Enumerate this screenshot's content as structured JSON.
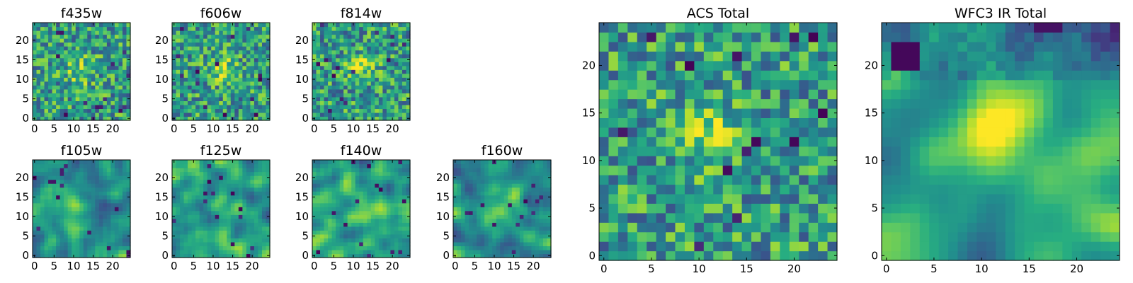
{
  "chart_data": [
    {
      "type": "heatmap",
      "title": "f435w",
      "colormap": "viridis",
      "grid_size": 25,
      "centroid": [
        12,
        12
      ],
      "smoothing": "none",
      "xticks": [
        "0",
        "5",
        "10",
        "15",
        "20"
      ],
      "yticks": [
        "0",
        "5",
        "10",
        "15",
        "20"
      ],
      "xlim": [
        -0.5,
        24.5
      ],
      "ylim": [
        -0.5,
        24.5
      ]
    },
    {
      "type": "heatmap",
      "title": "f606w",
      "colormap": "viridis",
      "grid_size": 25,
      "centroid": [
        12,
        13
      ],
      "smoothing": "none",
      "xticks": [
        "0",
        "5",
        "10",
        "15",
        "20"
      ],
      "yticks": [
        "0",
        "5",
        "10",
        "15",
        "20"
      ],
      "xlim": [
        -0.5,
        24.5
      ],
      "ylim": [
        -0.5,
        24.5
      ]
    },
    {
      "type": "heatmap",
      "title": "f814w",
      "colormap": "viridis",
      "grid_size": 25,
      "centroid": [
        12,
        13
      ],
      "smoothing": "none",
      "xticks": [
        "0",
        "5",
        "10",
        "15",
        "20"
      ],
      "yticks": [
        "0",
        "5",
        "10",
        "15",
        "20"
      ],
      "xlim": [
        -0.5,
        24.5
      ],
      "ylim": [
        -0.5,
        24.5
      ]
    },
    {
      "type": "heatmap",
      "title": "f105w",
      "colormap": "viridis",
      "grid_size": 25,
      "centroid": [
        10,
        12
      ],
      "smoothing": "medium",
      "xticks": [
        "0",
        "5",
        "10",
        "15",
        "20"
      ],
      "yticks": [
        "0",
        "5",
        "10",
        "15",
        "20"
      ],
      "xlim": [
        -0.5,
        24.5
      ],
      "ylim": [
        -0.5,
        24.5
      ]
    },
    {
      "type": "heatmap",
      "title": "f125w",
      "colormap": "viridis",
      "grid_size": 25,
      "centroid": [
        12,
        12
      ],
      "smoothing": "medium",
      "xticks": [
        "0",
        "5",
        "10",
        "15",
        "20"
      ],
      "yticks": [
        "0",
        "5",
        "10",
        "15",
        "20"
      ],
      "xlim": [
        -0.5,
        24.5
      ],
      "ylim": [
        -0.5,
        24.5
      ]
    },
    {
      "type": "heatmap",
      "title": "f140w",
      "colormap": "viridis",
      "grid_size": 25,
      "centroid": [
        12,
        14
      ],
      "smoothing": "medium",
      "xticks": [
        "0",
        "5",
        "10",
        "15",
        "20"
      ],
      "yticks": [
        "0",
        "5",
        "10",
        "15",
        "20"
      ],
      "xlim": [
        -0.5,
        24.5
      ],
      "ylim": [
        -0.5,
        24.5
      ]
    },
    {
      "type": "heatmap",
      "title": "f160w",
      "colormap": "viridis",
      "grid_size": 25,
      "centroid": [
        12,
        12
      ],
      "smoothing": "medium",
      "xticks": [
        "0",
        "5",
        "10",
        "15",
        "20"
      ],
      "yticks": [
        "0",
        "5",
        "10",
        "15",
        "20"
      ],
      "xlim": [
        -0.5,
        24.5
      ],
      "ylim": [
        -0.5,
        24.5
      ]
    },
    {
      "type": "heatmap",
      "title": "ACS Total",
      "colormap": "viridis",
      "grid_size": 25,
      "centroid": [
        11,
        13
      ],
      "smoothing": "none",
      "xticks": [
        "0",
        "5",
        "10",
        "15",
        "20"
      ],
      "yticks": [
        "0",
        "5",
        "10",
        "15",
        "20"
      ],
      "xlim": [
        -0.5,
        24.5
      ],
      "ylim": [
        -0.5,
        24.5
      ]
    },
    {
      "type": "heatmap",
      "title": "WFC3 IR Total",
      "colormap": "viridis",
      "grid_size": 25,
      "centroid": [
        12,
        13
      ],
      "smoothing": "high",
      "xticks": [
        "0",
        "5",
        "10",
        "15",
        "20"
      ],
      "yticks": [
        "0",
        "5",
        "10",
        "15",
        "20"
      ],
      "xlim": [
        -0.5,
        24.5
      ],
      "ylim": [
        -0.5,
        24.5
      ]
    }
  ]
}
